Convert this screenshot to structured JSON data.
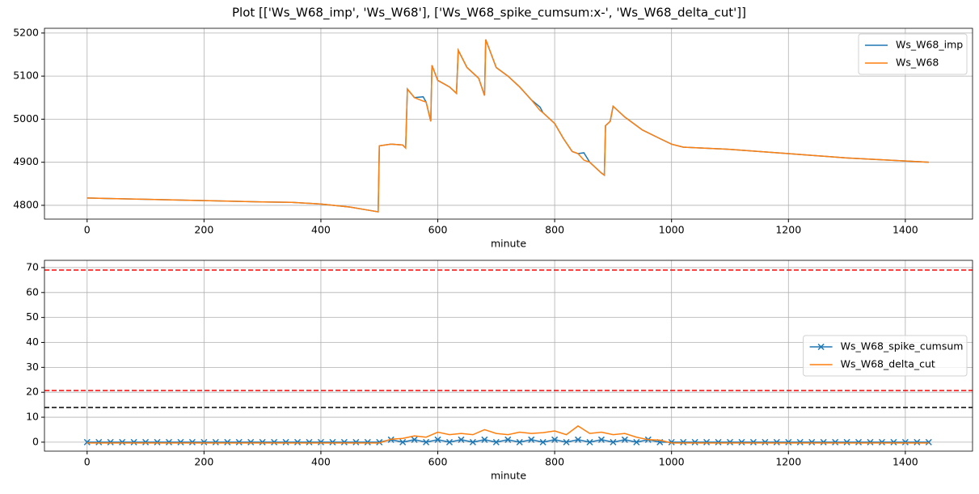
{
  "title": "Plot [['Ws_W68_imp', 'Ws_W68'], ['Ws_W68_spike_cumsum:x-', 'Ws_W68_delta_cut']]",
  "chart_data": [
    {
      "type": "line",
      "xlabel": "minute",
      "xlim": [
        -73,
        1515
      ],
      "ylim": [
        4768,
        5211
      ],
      "xticks": [
        0,
        200,
        400,
        600,
        800,
        1000,
        1200,
        1400
      ],
      "yticks": [
        4800,
        4900,
        5000,
        5100,
        5200
      ],
      "grid": true,
      "legend": "upper right",
      "x": [
        0,
        100,
        200,
        300,
        350,
        400,
        450,
        480,
        498,
        500,
        520,
        540,
        545,
        548,
        560,
        575,
        580,
        588,
        590,
        600,
        620,
        632,
        635,
        650,
        670,
        680,
        682,
        700,
        720,
        740,
        760,
        775,
        780,
        800,
        815,
        825,
        830,
        840,
        850,
        860,
        880,
        885,
        887,
        895,
        900,
        920,
        950,
        980,
        1000,
        1020,
        1100,
        1200,
        1300,
        1400,
        1440
      ],
      "series": [
        {
          "name": "Ws_W68_imp",
          "color": "#1f77b4",
          "values": [
            4817,
            4814,
            4811,
            4808,
            4807,
            4803,
            4796,
            4789,
            4785,
            4938,
            4942,
            4940,
            4933,
            5070,
            5050,
            5052,
            5040,
            4995,
            5125,
            5090,
            5075,
            5060,
            5160,
            5120,
            5095,
            5055,
            5185,
            5120,
            5100,
            5075,
            5045,
            5028,
            5015,
            4990,
            4955,
            4935,
            4925,
            4920,
            4922,
            4900,
            4875,
            4870,
            4985,
            4995,
            5030,
            5005,
            4975,
            4955,
            4942,
            4935,
            4930,
            4920,
            4910,
            4903,
            4900
          ]
        },
        {
          "name": "Ws_W68",
          "color": "#ff7f0e",
          "values": [
            4817,
            4814,
            4811,
            4808,
            4807,
            4803,
            4796,
            4789,
            4785,
            4938,
            4942,
            4940,
            4933,
            5070,
            5050,
            5042,
            5040,
            4995,
            5125,
            5090,
            5075,
            5060,
            5160,
            5120,
            5095,
            5055,
            5185,
            5120,
            5100,
            5075,
            5045,
            5020,
            5015,
            4990,
            4955,
            4935,
            4925,
            4920,
            4905,
            4900,
            4875,
            4870,
            4985,
            4995,
            5030,
            5005,
            4975,
            4955,
            4942,
            4935,
            4930,
            4920,
            4910,
            4903,
            4900
          ]
        }
      ]
    },
    {
      "type": "line",
      "xlabel": "minute",
      "xlim": [
        -73,
        1515
      ],
      "ylim": [
        -3.6,
        72.9
      ],
      "xticks": [
        0,
        200,
        400,
        600,
        800,
        1000,
        1200,
        1400
      ],
      "yticks": [
        0,
        10,
        20,
        30,
        40,
        50,
        60,
        70
      ],
      "grid": true,
      "legend": "center right",
      "hlines": [
        {
          "value": 69,
          "color": "#ff0000"
        },
        {
          "value": 20.7,
          "color": "#ff0000"
        },
        {
          "value": 13.9,
          "color": "#000000"
        }
      ],
      "x": [
        0,
        20,
        40,
        60,
        80,
        100,
        120,
        140,
        160,
        180,
        200,
        220,
        240,
        260,
        280,
        300,
        320,
        340,
        360,
        380,
        400,
        420,
        440,
        460,
        480,
        500,
        520,
        540,
        560,
        580,
        600,
        620,
        640,
        660,
        680,
        700,
        720,
        740,
        760,
        780,
        800,
        820,
        840,
        860,
        880,
        900,
        920,
        940,
        960,
        980,
        1000,
        1020,
        1040,
        1060,
        1080,
        1100,
        1120,
        1140,
        1160,
        1180,
        1200,
        1220,
        1240,
        1260,
        1280,
        1300,
        1320,
        1340,
        1360,
        1380,
        1400,
        1420,
        1440
      ],
      "series": [
        {
          "name": "Ws_W68_spike_cumsum",
          "color": "#1f77b4",
          "marker": "x",
          "values": [
            0,
            0,
            0,
            0,
            0,
            0,
            0,
            0,
            0,
            0,
            0,
            0,
            0,
            0,
            0,
            0,
            0,
            0,
            0,
            0,
            0,
            0,
            0,
            0,
            0,
            0,
            1,
            0,
            1,
            0,
            1,
            0,
            1,
            0,
            1,
            0,
            1,
            0,
            1,
            0,
            1,
            0,
            1,
            0,
            1,
            0,
            1,
            0,
            1,
            0,
            0,
            0,
            0,
            0,
            0,
            0,
            0,
            0,
            0,
            0,
            0,
            0,
            0,
            0,
            0,
            0,
            0,
            0,
            0,
            0,
            0,
            0,
            0
          ]
        },
        {
          "name": "Ws_W68_delta_cut",
          "color": "#ff7f0e",
          "values": [
            -0.3,
            -0.3,
            -0.3,
            -0.3,
            -0.3,
            -0.3,
            -0.3,
            -0.3,
            -0.3,
            -0.3,
            -0.3,
            -0.3,
            -0.3,
            -0.3,
            -0.3,
            -0.3,
            -0.3,
            -0.3,
            -0.3,
            -0.3,
            -0.3,
            -0.3,
            -0.3,
            -0.3,
            -0.3,
            -0.3,
            1.2,
            1.5,
            2.5,
            2.0,
            4.0,
            3.0,
            3.5,
            3.0,
            5.0,
            3.5,
            3.0,
            4.0,
            3.5,
            3.8,
            4.5,
            3.0,
            6.5,
            3.5,
            4.0,
            3.0,
            3.5,
            2.0,
            1.0,
            0.8,
            -0.3,
            -0.3,
            -0.3,
            -0.3,
            -0.3,
            -0.3,
            -0.3,
            -0.3,
            -0.3,
            -0.3,
            -0.3,
            -0.3,
            -0.3,
            -0.3,
            -0.3,
            -0.3,
            -0.3,
            -0.3,
            -0.3,
            -0.3,
            -0.3,
            -0.3,
            -0.3
          ]
        }
      ]
    }
  ]
}
